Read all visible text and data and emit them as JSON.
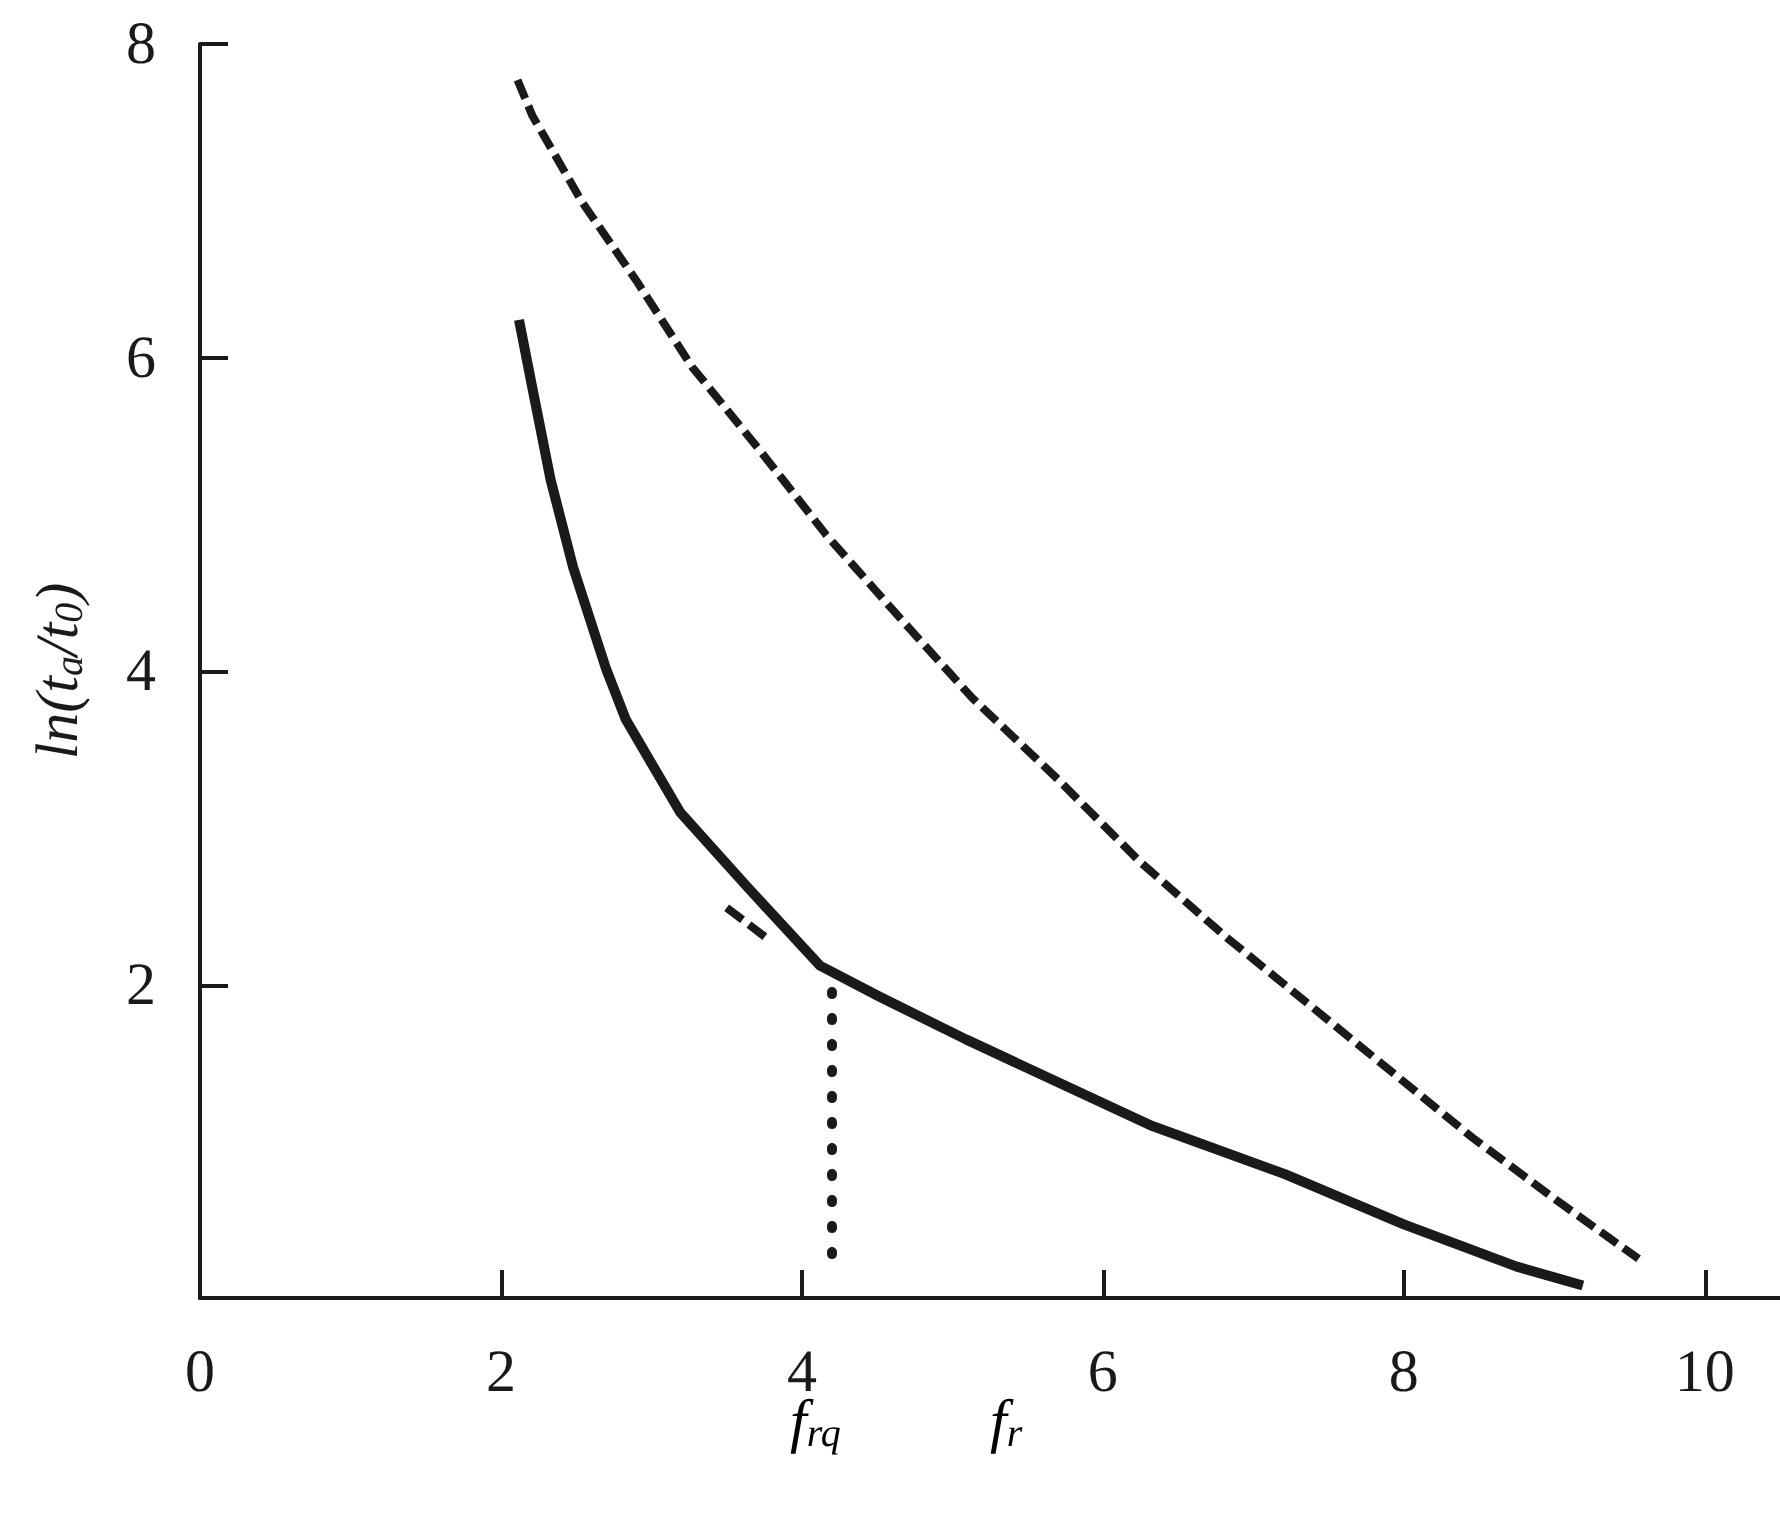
{
  "chart_data": {
    "type": "line",
    "ylabel": "ln(t$_{a}$/t$_{0}$)",
    "xlim": [
      0,
      10.5
    ],
    "ylim": [
      0,
      8
    ],
    "xticks": [
      0,
      2,
      4,
      6,
      8,
      10
    ],
    "yticks": [
      2,
      4,
      6,
      8
    ],
    "marker": "none",
    "series": [
      {
        "color": "#1a1a1a",
        "line_style": "dashed",
        "x": [
          2.11,
          2.21,
          2.54,
          2.9,
          3.27,
          3.71,
          4.16,
          4.65,
          5.13,
          5.7,
          6.25,
          6.81,
          7.36,
          7.91,
          8.46,
          9.02,
          9.56
        ],
        "values": [
          7.77,
          7.54,
          6.99,
          6.49,
          5.94,
          5.42,
          4.87,
          4.34,
          3.83,
          3.31,
          2.78,
          2.31,
          1.88,
          1.45,
          1.02,
          0.62,
          0.25
        ]
      },
      {
        "color": "#1a1a1a",
        "line_style": "solid",
        "x": [
          2.12,
          2.21,
          2.33,
          2.48,
          2.7,
          2.83,
          3.19,
          3.63,
          4.12,
          4.52,
          5.09,
          6.32,
          7.21,
          8.0,
          8.75,
          9.19
        ],
        "values": [
          6.24,
          5.8,
          5.22,
          4.66,
          4.01,
          3.69,
          3.1,
          2.63,
          2.12,
          1.92,
          1.65,
          1.1,
          0.79,
          0.47,
          0.2,
          0.08
        ]
      },
      {
        "color": "#1a1a1a",
        "line_style": "dashed",
        "x": [
          3.5,
          3.76
        ],
        "values": [
          2.49,
          2.3
        ]
      },
      {
        "color": "#1a1a1a",
        "line_style": "dotted",
        "x": [
          4.2,
          4.2
        ],
        "values": [
          0.28,
          2.05
        ]
      }
    ],
    "annotations": [
      "f$_{rq}$",
      "f$_{r}$"
    ]
  }
}
